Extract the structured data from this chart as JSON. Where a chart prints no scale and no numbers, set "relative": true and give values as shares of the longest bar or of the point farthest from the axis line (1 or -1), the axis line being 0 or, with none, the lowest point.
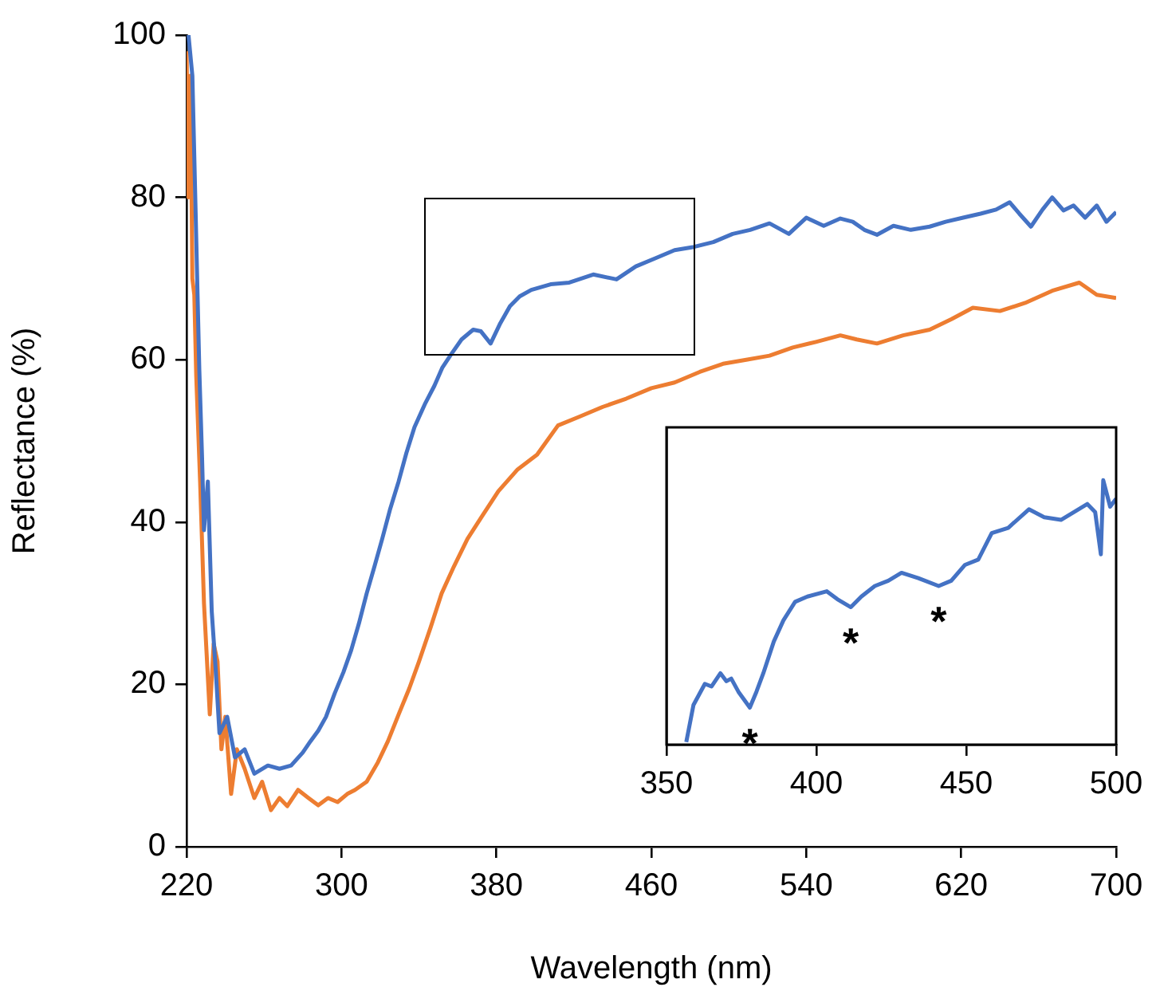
{
  "chart_data": [
    {
      "type": "line",
      "xlabel": "Wavelength (nm)",
      "ylabel": "Reflectance (%)",
      "xlim": [
        220,
        700
      ],
      "xticks": [
        220,
        300,
        380,
        460,
        540,
        620,
        700
      ],
      "ylim": [
        0,
        100
      ],
      "yticks": [
        0,
        20,
        40,
        60,
        80,
        100
      ],
      "series": [
        {
          "color": "#4472c4",
          "x": [
            221,
            223,
            224.5,
            226.6,
            228,
            229,
            231,
            233,
            235,
            237,
            241,
            245,
            250,
            255,
            262,
            268,
            274,
            280,
            284,
            288,
            292,
            296.5,
            301,
            305,
            309,
            313,
            317,
            321,
            325,
            329.5,
            333.5,
            337.7,
            343,
            348,
            352,
            356.7,
            362,
            368,
            372,
            377,
            382,
            387,
            392,
            398,
            408,
            417.6,
            430,
            442,
            452,
            462,
            472,
            482,
            492,
            502,
            511,
            521,
            531,
            540,
            549,
            557.6,
            564,
            570,
            576.5,
            585,
            594,
            603.7,
            612,
            621,
            630,
            638,
            645,
            650,
            656,
            662,
            667,
            672.8,
            678,
            684,
            690,
            695,
            700
          ],
          "values": [
            100,
            95,
            80,
            58.7,
            48,
            39,
            45,
            29,
            22,
            14,
            16,
            11,
            12,
            9,
            10,
            9.6,
            10,
            11.6,
            13,
            14.3,
            16,
            18.9,
            21.5,
            24.2,
            27.5,
            31.2,
            34.5,
            37.9,
            41.5,
            45,
            48.5,
            51.7,
            54.5,
            56.8,
            59,
            60.7,
            62.5,
            63.7,
            63.5,
            62,
            64.5,
            66.6,
            67.8,
            68.6,
            69.3,
            69.5,
            70.5,
            69.9,
            71.5,
            72.5,
            73.5,
            73.9,
            74.5,
            75.5,
            76,
            76.8,
            75.5,
            77.5,
            76.5,
            77.4,
            77,
            76,
            75.4,
            76.5,
            76,
            76.4,
            77,
            77.5,
            78,
            78.5,
            79.4,
            78,
            76.4,
            78.5,
            80,
            78.4,
            79,
            77.5,
            79,
            77,
            78.2
          ]
        },
        {
          "color": "#ed7d31",
          "x": [
            220,
            221,
            222,
            223,
            224,
            225,
            227,
            229,
            232,
            234,
            236,
            238,
            240,
            243,
            246,
            250,
            255,
            259,
            263.6,
            268,
            272,
            277.6,
            283,
            288,
            293,
            298,
            303,
            307,
            313,
            318.8,
            324,
            329.5,
            335,
            340,
            346,
            351.7,
            358,
            365,
            372,
            381,
            391,
            401,
            411.8,
            423,
            435,
            447,
            460,
            472,
            485,
            497,
            509,
            521,
            533,
            545,
            557.6,
            566,
            576.5,
            590,
            603.7,
            615,
            626,
            640,
            653,
            667,
            681,
            690,
            700
          ],
          "values": [
            98,
            80,
            95,
            70,
            68,
            58,
            45,
            30,
            16.3,
            25,
            22.8,
            12,
            16,
            6.5,
            12,
            9.6,
            6,
            8,
            4.5,
            6,
            5,
            7,
            6,
            5.1,
            6,
            5.5,
            6.5,
            7,
            8,
            10.4,
            13,
            16.3,
            19.5,
            22.8,
            27,
            31.2,
            34.5,
            37.9,
            40.5,
            43.8,
            46.5,
            48.3,
            51.9,
            53,
            54.2,
            55.2,
            56.5,
            57.2,
            58.5,
            59.5,
            60,
            60.5,
            61.5,
            62.2,
            63,
            62.5,
            62,
            63,
            63.7,
            65,
            66.4,
            66,
            67,
            68.5,
            69.5,
            68,
            67.6
          ]
        }
      ]
    },
    {
      "type": "line",
      "relative": true,
      "tick_labels": "x",
      "xlim": [
        350,
        500
      ],
      "xticks": [
        350,
        400,
        450,
        500
      ],
      "series": [
        {
          "color": "#4472c4",
          "x": [
            356.6,
            359,
            362.8,
            365,
            368,
            370,
            371.6,
            374,
            377.8,
            380,
            382.3,
            385.8,
            389,
            392.9,
            397,
            403.5,
            407,
            411.5,
            415,
            419.5,
            424,
            428.4,
            434,
            440.8,
            445,
            449.6,
            454,
            458.5,
            464,
            470.9,
            476,
            481.6,
            486,
            490.4,
            493,
            494.9,
            495.7,
            498,
            500
          ],
          "values": [
            0.01,
            0.15,
            0.23,
            0.22,
            0.27,
            0.24,
            0.25,
            0.2,
            0.14,
            0.2,
            0.27,
            0.39,
            0.47,
            0.54,
            0.56,
            0.58,
            0.55,
            0.52,
            0.56,
            0.6,
            0.62,
            0.65,
            0.63,
            0.6,
            0.62,
            0.68,
            0.7,
            0.8,
            0.82,
            0.89,
            0.86,
            0.85,
            0.88,
            0.91,
            0.88,
            0.72,
            1,
            0.9,
            0.93
          ]
        }
      ],
      "annotations": [
        {
          "text": "*",
          "x": 377.8,
          "y": 0.14
        },
        {
          "text": "*",
          "x": 411.5,
          "y": 0.52
        },
        {
          "text": "*",
          "x": 440.8,
          "y": 0.6
        }
      ]
    }
  ]
}
